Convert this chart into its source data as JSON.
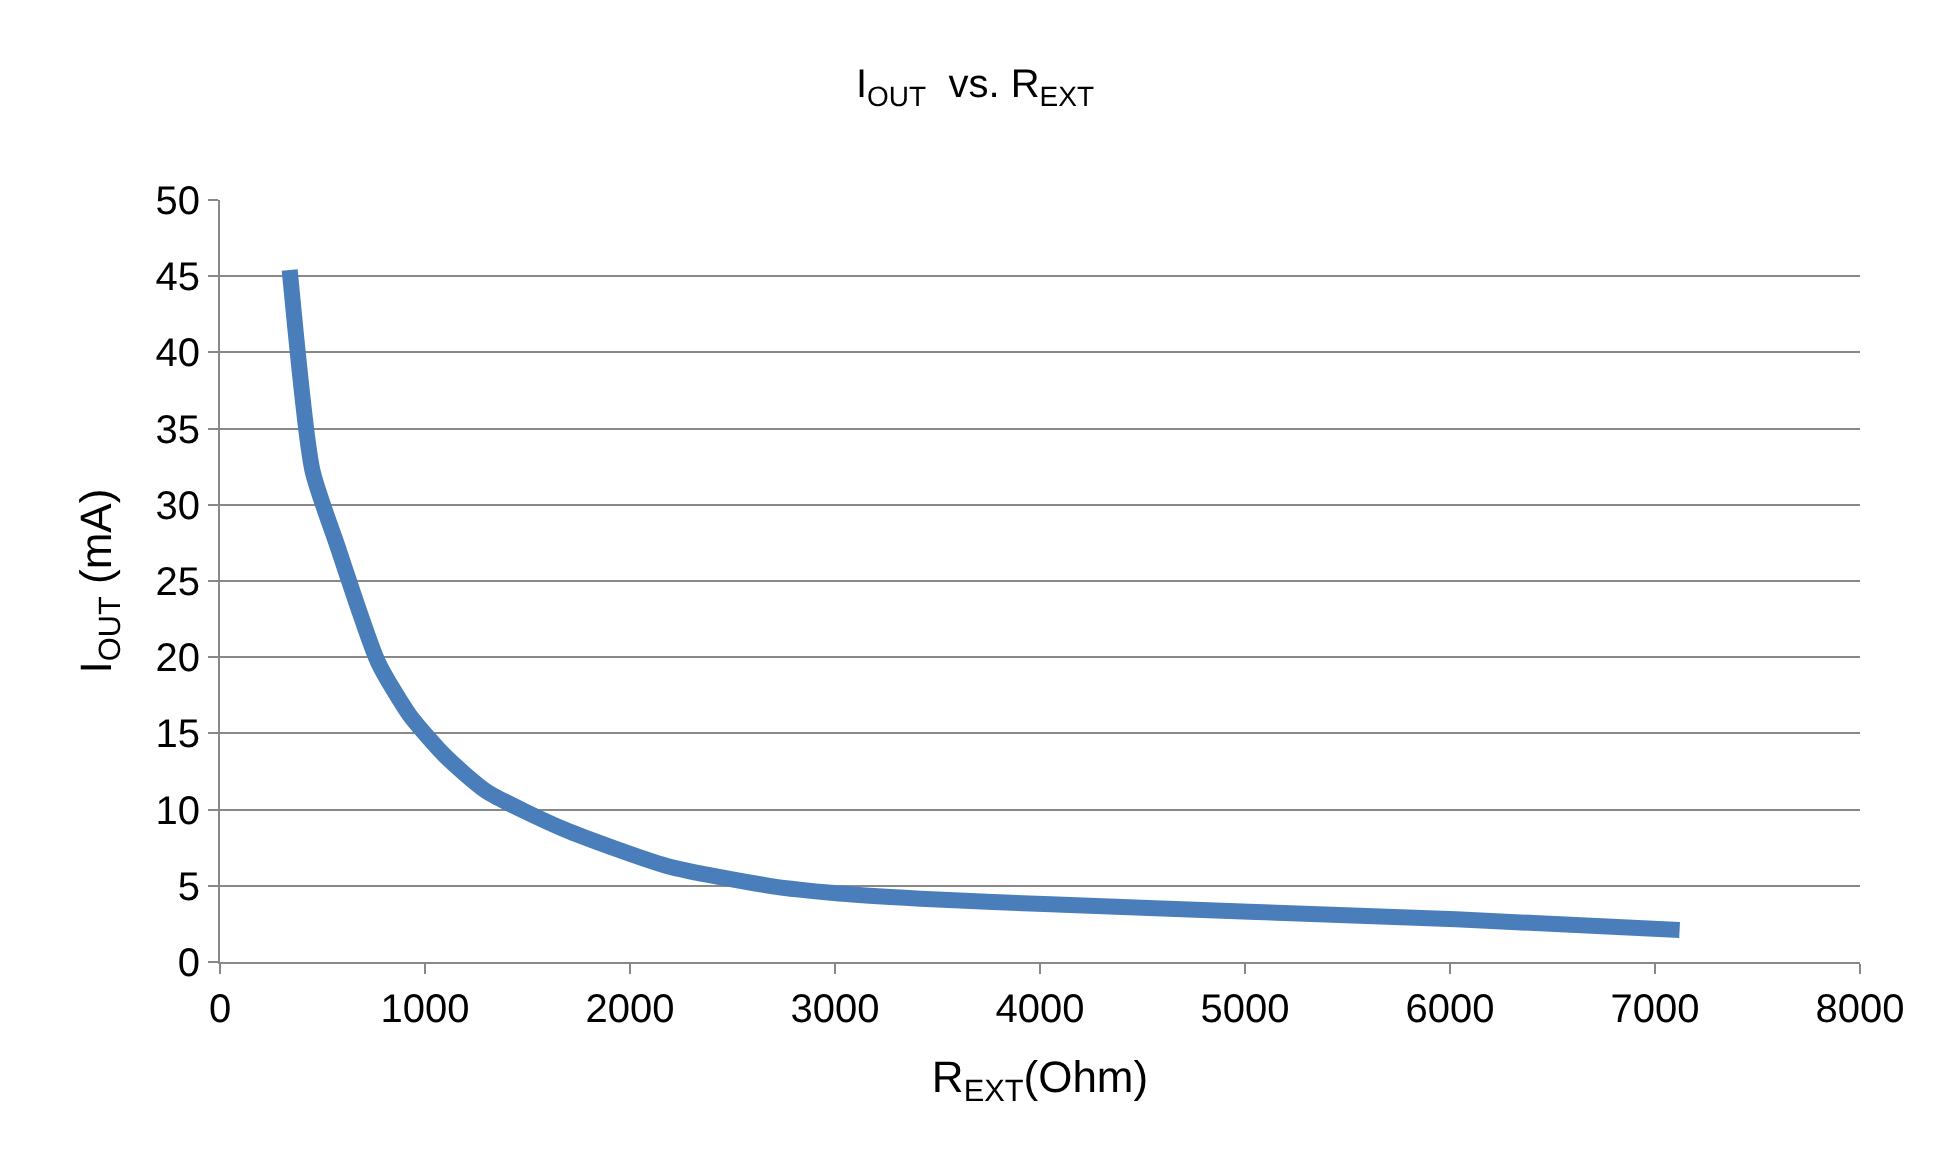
{
  "chart_data": {
    "type": "line",
    "title": "I$_{OUT}$  vs. R$_{EXT}$",
    "xlabel": "R$_{EXT}$(Ohm)",
    "ylabel": "I$_{OUT}$ (mA)",
    "x": [
      340,
      450,
      570,
      770,
      925,
      1100,
      1300,
      1680,
      2180,
      2680,
      3020,
      3500,
      4020,
      5020,
      6030,
      7120
    ],
    "series": [
      {
        "color": "#4a7ebb",
        "values": [
          45.4,
          32.3,
          27.4,
          19.7,
          16.2,
          13.5,
          11.2,
          8.7,
          6.3,
          5.0,
          4.5,
          4.1,
          3.8,
          3.3,
          2.8,
          2.1
        ]
      }
    ],
    "xlim": [
      0,
      8000
    ],
    "xticks": [
      0,
      1000,
      2000,
      3000,
      4000,
      5000,
      6000,
      7000,
      8000
    ],
    "ylim": [
      0,
      50
    ],
    "yticks": [
      0,
      5,
      10,
      15,
      20,
      25,
      30,
      35,
      40,
      45,
      50
    ],
    "grid": "y",
    "marker": "none",
    "line_style": "solid"
  }
}
